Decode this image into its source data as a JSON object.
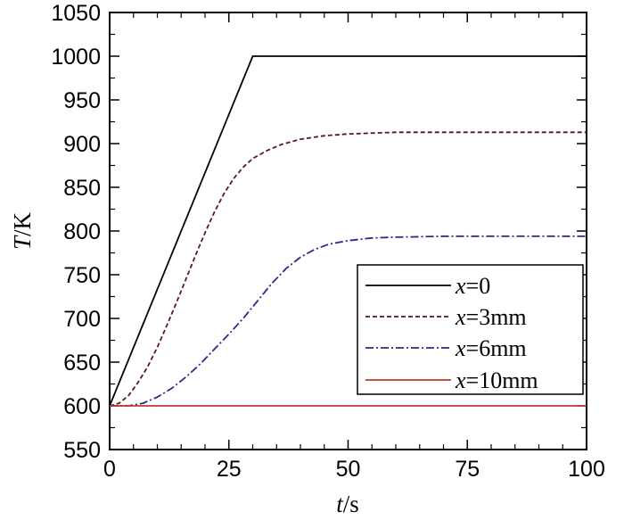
{
  "chart_data": {
    "type": "line",
    "xlabel": {
      "var": "t",
      "unit": "/s"
    },
    "ylabel": {
      "var": "T",
      "unit": "/K"
    },
    "xlim": [
      0,
      100
    ],
    "ylim": [
      550,
      1050
    ],
    "xticks": [
      0,
      25,
      50,
      75,
      100
    ],
    "yticks": [
      550,
      600,
      650,
      700,
      750,
      800,
      850,
      900,
      950,
      1000,
      1050
    ],
    "grid": false,
    "legend_position": "bottom-right",
    "series": [
      {
        "name": {
          "var": "x",
          "rest": "=0"
        },
        "style": "solid",
        "color": "#000000",
        "points": [
          [
            0,
            600
          ],
          [
            30,
            1000
          ],
          [
            100,
            1000
          ]
        ]
      },
      {
        "name": {
          "var": "x",
          "rest": "=3mm"
        },
        "style": "dashed",
        "color": "#5a1a1a",
        "points": [
          [
            0,
            600
          ],
          [
            2,
            603
          ],
          [
            4,
            612
          ],
          [
            6,
            627
          ],
          [
            8,
            645
          ],
          [
            10,
            667
          ],
          [
            12,
            692
          ],
          [
            14,
            718
          ],
          [
            16,
            745
          ],
          [
            18,
            772
          ],
          [
            20,
            798
          ],
          [
            22,
            822
          ],
          [
            24,
            843
          ],
          [
            26,
            860
          ],
          [
            28,
            873
          ],
          [
            30,
            883
          ],
          [
            33,
            892
          ],
          [
            36,
            899
          ],
          [
            40,
            905
          ],
          [
            45,
            909
          ],
          [
            50,
            911
          ],
          [
            60,
            913
          ],
          [
            75,
            913
          ],
          [
            100,
            913
          ]
        ]
      },
      {
        "name": {
          "var": "x",
          "rest": "=6mm"
        },
        "style": "dashdot",
        "color": "#2a2a8a",
        "points": [
          [
            0,
            600
          ],
          [
            4,
            600
          ],
          [
            7,
            603
          ],
          [
            10,
            610
          ],
          [
            13,
            620
          ],
          [
            16,
            633
          ],
          [
            19,
            648
          ],
          [
            22,
            665
          ],
          [
            25,
            682
          ],
          [
            28,
            700
          ],
          [
            31,
            720
          ],
          [
            34,
            740
          ],
          [
            37,
            757
          ],
          [
            40,
            770
          ],
          [
            43,
            779
          ],
          [
            46,
            785
          ],
          [
            50,
            789
          ],
          [
            55,
            792
          ],
          [
            60,
            793
          ],
          [
            70,
            794
          ],
          [
            80,
            794
          ],
          [
            100,
            794
          ]
        ]
      },
      {
        "name": {
          "var": "x",
          "rest": "=10mm"
        },
        "style": "solid",
        "color": "#c0392b",
        "points": [
          [
            0,
            600
          ],
          [
            100,
            600
          ]
        ]
      }
    ]
  }
}
